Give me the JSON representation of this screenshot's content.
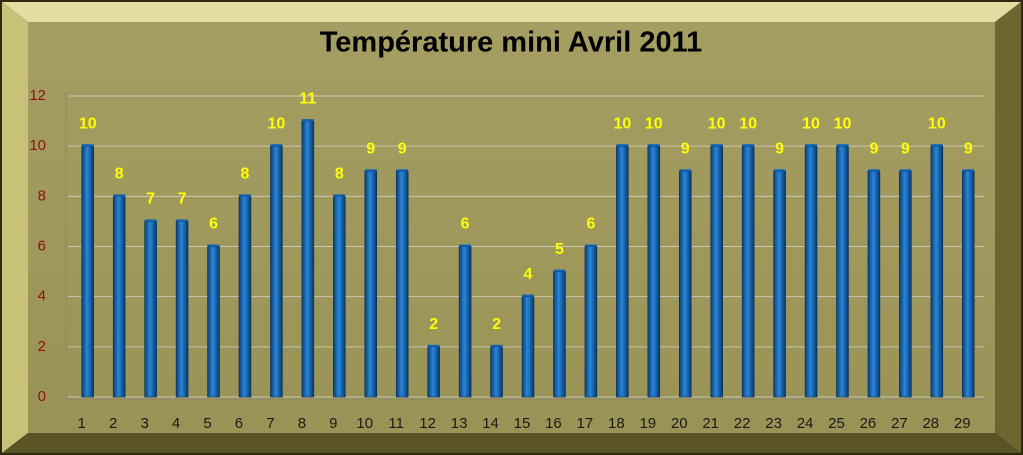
{
  "chart_data": {
    "type": "bar",
    "title": "Température mini Avril 2011",
    "categories": [
      "1",
      "2",
      "3",
      "4",
      "5",
      "6",
      "7",
      "8",
      "9",
      "10",
      "11",
      "12",
      "13",
      "14",
      "15",
      "16",
      "17",
      "18",
      "19",
      "20",
      "21",
      "22",
      "23",
      "24",
      "25",
      "26",
      "27",
      "28",
      "29"
    ],
    "values": [
      10,
      8,
      7,
      7,
      6,
      8,
      10,
      11,
      8,
      9,
      9,
      2,
      6,
      2,
      4,
      5,
      6,
      10,
      10,
      9,
      10,
      10,
      9,
      10,
      10,
      9,
      9,
      10,
      9
    ],
    "color": "#1464b4",
    "label_color": "#ffff00",
    "ylim": [
      0,
      12
    ],
    "yticks": [
      0,
      2,
      4,
      6,
      8,
      10,
      12
    ],
    "grid": true
  }
}
